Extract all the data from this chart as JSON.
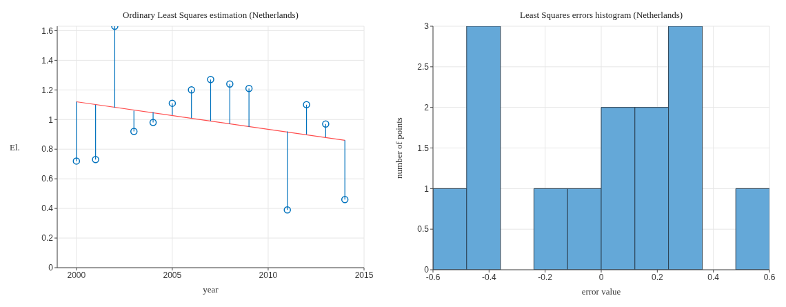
{
  "chart_data": [
    {
      "type": "scatter",
      "title": "Ordinary Least Squares estimation (Netherlands)",
      "xlabel": "year",
      "ylabel": "El.",
      "xlim": [
        1999,
        2015
      ],
      "xticks": [
        2000,
        2005,
        2010,
        2015
      ],
      "ylim": [
        0,
        1.63
      ],
      "yticks": [
        0,
        0.2,
        0.4,
        0.6,
        0.8,
        1,
        1.2,
        1.4,
        1.6
      ],
      "grid": true,
      "series": [
        {
          "type": "scatter",
          "marker": "circle",
          "color": "#0072bd",
          "x": [
            2000,
            2001,
            2002,
            2003,
            2004,
            2005,
            2006,
            2007,
            2008,
            2009,
            2011,
            2012,
            2013,
            2014
          ],
          "values": [
            0.72,
            0.73,
            1.63,
            0.92,
            0.98,
            1.11,
            1.2,
            1.27,
            1.24,
            1.21,
            0.39,
            1.1,
            0.97,
            0.46
          ],
          "errors": [
            [
              0.72,
              1.12
            ],
            [
              0.73,
              1.1
            ],
            [
              1.08,
              1.63
            ],
            [
              0.92,
              1.06
            ],
            [
              0.98,
              1.05
            ],
            [
              1.03,
              1.11
            ],
            [
              1.01,
              1.2
            ],
            [
              0.99,
              1.27
            ],
            [
              0.97,
              1.24
            ],
            [
              0.95,
              1.21
            ],
            [
              0.39,
              0.92
            ],
            [
              0.9,
              1.1
            ],
            [
              0.88,
              0.97
            ],
            [
              0.46,
              0.86
            ]
          ]
        },
        {
          "type": "line",
          "color": "#ff4d4d",
          "x": [
            2000,
            2014
          ],
          "values": [
            1.12,
            0.86
          ]
        }
      ]
    },
    {
      "type": "histogram",
      "title": "Least Squares errors histogram (Netherlands)",
      "xlabel": "error value",
      "ylabel": "number of points",
      "bins": [
        -0.6,
        -0.48,
        -0.36,
        -0.24,
        -0.12,
        0,
        0.12,
        0.24,
        0.36,
        0.48,
        0.6
      ],
      "values": [
        1,
        3,
        0,
        1,
        1,
        2,
        2,
        3,
        0,
        1
      ],
      "color": "#64a8d8",
      "xlim": [
        -0.6,
        0.6
      ],
      "xticks": [
        -0.6,
        -0.4,
        -0.2,
        0,
        0.2,
        0.4,
        0.6
      ],
      "ylim": [
        0,
        3
      ],
      "yticks": [
        0,
        0.5,
        1,
        1.5,
        2,
        2.5,
        3
      ],
      "grid": true
    }
  ]
}
